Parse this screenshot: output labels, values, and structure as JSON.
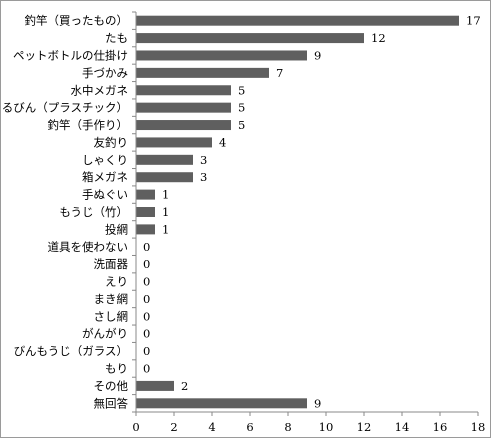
{
  "chart_data": {
    "type": "bar",
    "orientation": "horizontal",
    "title": "",
    "xlabel": "",
    "ylabel": "",
    "categories": [
      "釣竿（買ったもの）",
      "たも",
      "ペットボトルの仕掛け",
      "手づかみ",
      "水中メガネ",
      "せるびん（プラスチック）",
      "釣竿（手作り）",
      "友釣り",
      "しゃくり",
      "箱メガネ",
      "手ぬぐい",
      "もうじ（竹）",
      "投網",
      "道具を使わない",
      "洗面器",
      "えり",
      "まき網",
      "さし網",
      "がんがり",
      "びんもうじ（ガラス）",
      "もり",
      "その他",
      "無回答"
    ],
    "values": [
      17,
      12,
      9,
      7,
      5,
      5,
      5,
      4,
      3,
      3,
      1,
      1,
      1,
      0,
      0,
      0,
      0,
      0,
      0,
      0,
      0,
      2,
      9
    ],
    "xlim": [
      0,
      18
    ],
    "xticks": [
      0,
      2,
      4,
      6,
      8,
      10,
      12,
      14,
      16,
      18
    ],
    "grid": false,
    "legend": "none",
    "bar_color": "#5f5f5f",
    "axis_color": "#888888"
  }
}
